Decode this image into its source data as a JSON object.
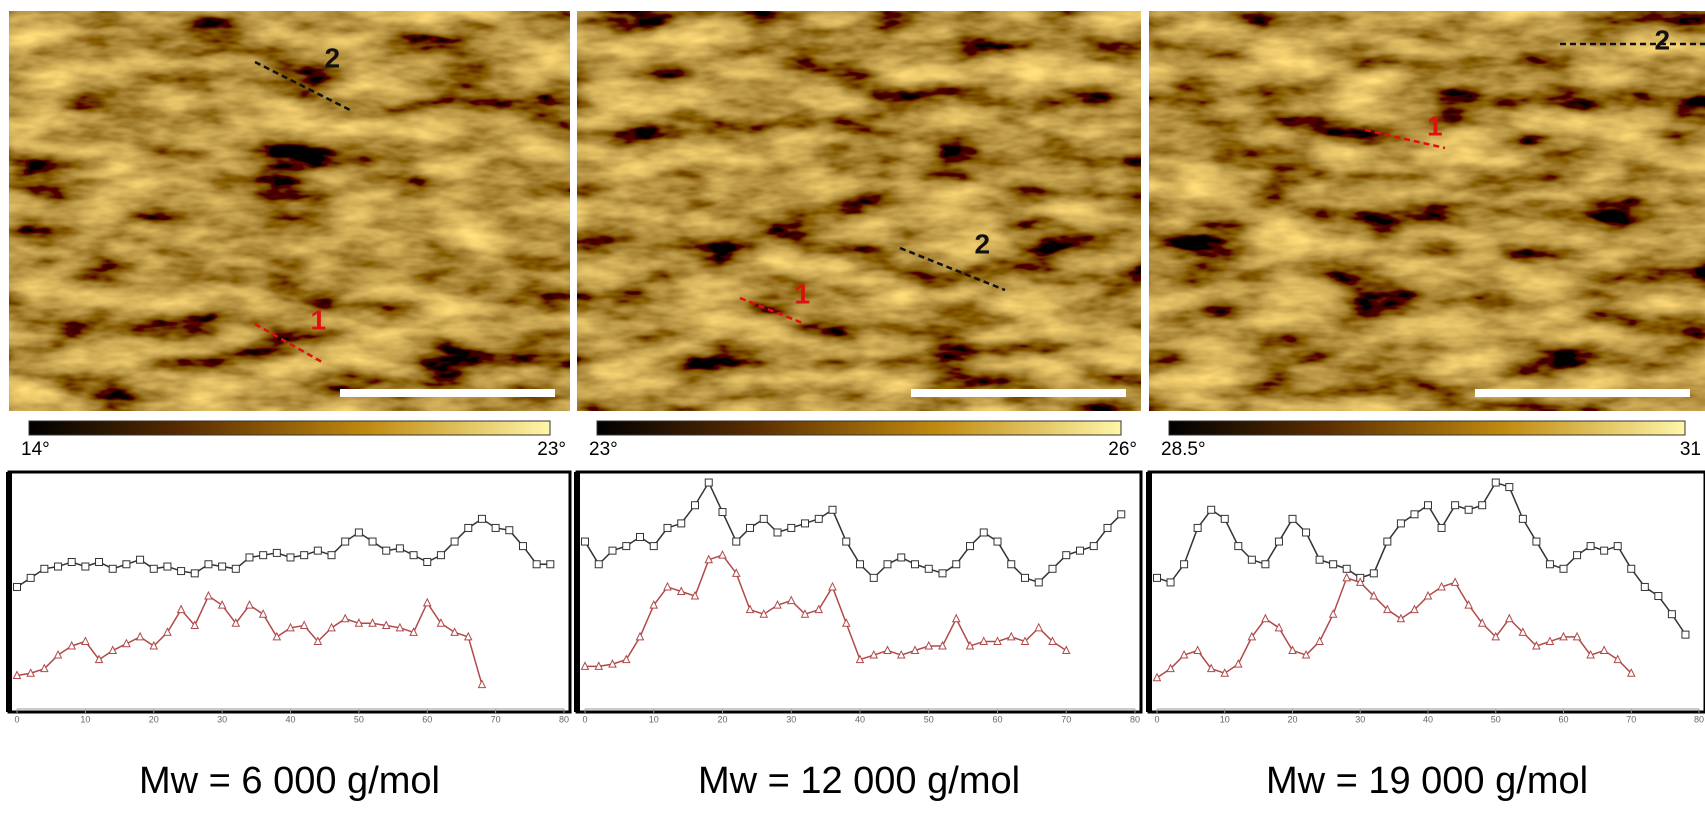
{
  "panels": [
    {
      "markers": [
        "2",
        "1"
      ],
      "colorbar": {
        "min_label": "14°",
        "max_label": "23°"
      },
      "caption": "Mw = 6 000 g/mol"
    },
    {
      "markers": [
        "2",
        "1"
      ],
      "colorbar": {
        "min_label": "23°",
        "max_label": "26°"
      },
      "caption": "Mw = 12 000 g/mol"
    },
    {
      "markers": [
        "2",
        "1"
      ],
      "colorbar": {
        "min_label": "28.5°",
        "max_label": "31"
      },
      "caption": "Mw = 19 000 g/mol"
    }
  ],
  "chart_data": [
    {
      "type": "line",
      "xlim": [
        0,
        80
      ],
      "xticks": [
        0,
        10,
        20,
        30,
        40,
        50,
        60,
        70,
        80
      ],
      "ylim": [
        0,
        100
      ],
      "series": [
        {
          "color": "#333333",
          "marker": "square",
          "x": [
            0,
            2,
            4,
            6,
            8,
            10,
            12,
            14,
            16,
            18,
            20,
            22,
            24,
            26,
            28,
            30,
            32,
            34,
            36,
            38,
            40,
            42,
            44,
            46,
            48,
            50,
            52,
            54,
            56,
            58,
            60,
            62,
            64,
            66,
            68,
            70,
            72,
            74,
            76,
            78
          ],
          "values": [
            52,
            56,
            60,
            61,
            63,
            61,
            63,
            60,
            62,
            64,
            60,
            61,
            59,
            58,
            62,
            61,
            60,
            65,
            66,
            67,
            65,
            66,
            68,
            66,
            72,
            76,
            72,
            68,
            69,
            66,
            63,
            66,
            72,
            78,
            82,
            78,
            77,
            70,
            62,
            62
          ]
        },
        {
          "color": "#b04a4a",
          "marker": "triangle",
          "x": [
            0,
            2,
            4,
            6,
            8,
            10,
            12,
            14,
            16,
            18,
            20,
            22,
            24,
            26,
            28,
            30,
            32,
            34,
            36,
            38,
            40,
            42,
            44,
            46,
            48,
            50,
            52,
            54,
            56,
            58,
            60,
            62,
            64,
            66,
            68
          ],
          "values": [
            13,
            14,
            16,
            22,
            26,
            28,
            20,
            24,
            27,
            30,
            26,
            32,
            42,
            35,
            48,
            44,
            36,
            44,
            40,
            30,
            34,
            35,
            28,
            34,
            38,
            36,
            36,
            35,
            34,
            32,
            45,
            36,
            32,
            30,
            9
          ]
        }
      ]
    },
    {
      "type": "line",
      "xlim": [
        0,
        80
      ],
      "xticks": [
        0,
        10,
        20,
        30,
        40,
        50,
        60,
        70,
        80
      ],
      "ylim": [
        0,
        100
      ],
      "series": [
        {
          "color": "#333333",
          "marker": "square",
          "x": [
            0,
            2,
            4,
            6,
            8,
            10,
            12,
            14,
            16,
            18,
            20,
            22,
            24,
            26,
            28,
            30,
            32,
            34,
            36,
            38,
            40,
            42,
            44,
            46,
            48,
            50,
            52,
            54,
            56,
            58,
            60,
            62,
            64,
            66,
            68,
            70,
            72,
            74,
            76,
            78
          ],
          "values": [
            72,
            62,
            68,
            70,
            74,
            70,
            78,
            80,
            88,
            98,
            85,
            72,
            78,
            82,
            76,
            78,
            80,
            82,
            86,
            72,
            62,
            56,
            62,
            65,
            62,
            60,
            58,
            62,
            70,
            76,
            72,
            62,
            56,
            54,
            60,
            66,
            68,
            70,
            78,
            84
          ]
        },
        {
          "color": "#b04a4a",
          "marker": "triangle",
          "x": [
            0,
            2,
            4,
            6,
            8,
            10,
            12,
            14,
            16,
            18,
            20,
            22,
            24,
            26,
            28,
            30,
            32,
            34,
            36,
            38,
            40,
            42,
            44,
            46,
            48,
            50,
            52,
            54,
            56,
            58,
            60,
            62,
            64,
            66,
            68,
            70
          ],
          "values": [
            17,
            17,
            18,
            20,
            30,
            44,
            52,
            50,
            48,
            64,
            66,
            58,
            42,
            40,
            44,
            46,
            40,
            42,
            52,
            36,
            20,
            22,
            24,
            22,
            24,
            26,
            26,
            38,
            26,
            28,
            28,
            30,
            28,
            34,
            28,
            24
          ]
        }
      ]
    },
    {
      "type": "line",
      "xlim": [
        0,
        80
      ],
      "xticks": [
        0,
        10,
        20,
        30,
        40,
        50,
        60,
        70,
        80
      ],
      "ylim": [
        0,
        100
      ],
      "series": [
        {
          "color": "#333333",
          "marker": "square",
          "x": [
            0,
            2,
            4,
            6,
            8,
            10,
            12,
            14,
            16,
            18,
            20,
            22,
            24,
            26,
            28,
            30,
            32,
            34,
            36,
            38,
            40,
            42,
            44,
            46,
            48,
            50,
            52,
            54,
            56,
            58,
            60,
            62,
            64,
            66,
            68,
            70,
            72,
            74,
            76,
            78
          ],
          "values": [
            56,
            54,
            62,
            78,
            86,
            82,
            70,
            64,
            62,
            72,
            82,
            76,
            64,
            62,
            60,
            56,
            58,
            72,
            80,
            84,
            88,
            78,
            88,
            86,
            88,
            98,
            96,
            82,
            72,
            62,
            60,
            66,
            70,
            68,
            70,
            60,
            52,
            48,
            40,
            31
          ]
        },
        {
          "color": "#b04a4a",
          "marker": "triangle",
          "x": [
            0,
            2,
            4,
            6,
            8,
            10,
            12,
            14,
            16,
            18,
            20,
            22,
            24,
            26,
            28,
            30,
            32,
            34,
            36,
            38,
            40,
            42,
            44,
            46,
            48,
            50,
            52,
            54,
            56,
            58,
            60,
            62,
            64,
            66,
            68,
            70
          ],
          "values": [
            12,
            16,
            22,
            24,
            16,
            14,
            18,
            30,
            38,
            34,
            24,
            22,
            28,
            40,
            56,
            54,
            48,
            42,
            38,
            42,
            48,
            52,
            54,
            44,
            36,
            30,
            38,
            32,
            26,
            28,
            30,
            30,
            22,
            24,
            20,
            14
          ]
        }
      ]
    }
  ]
}
